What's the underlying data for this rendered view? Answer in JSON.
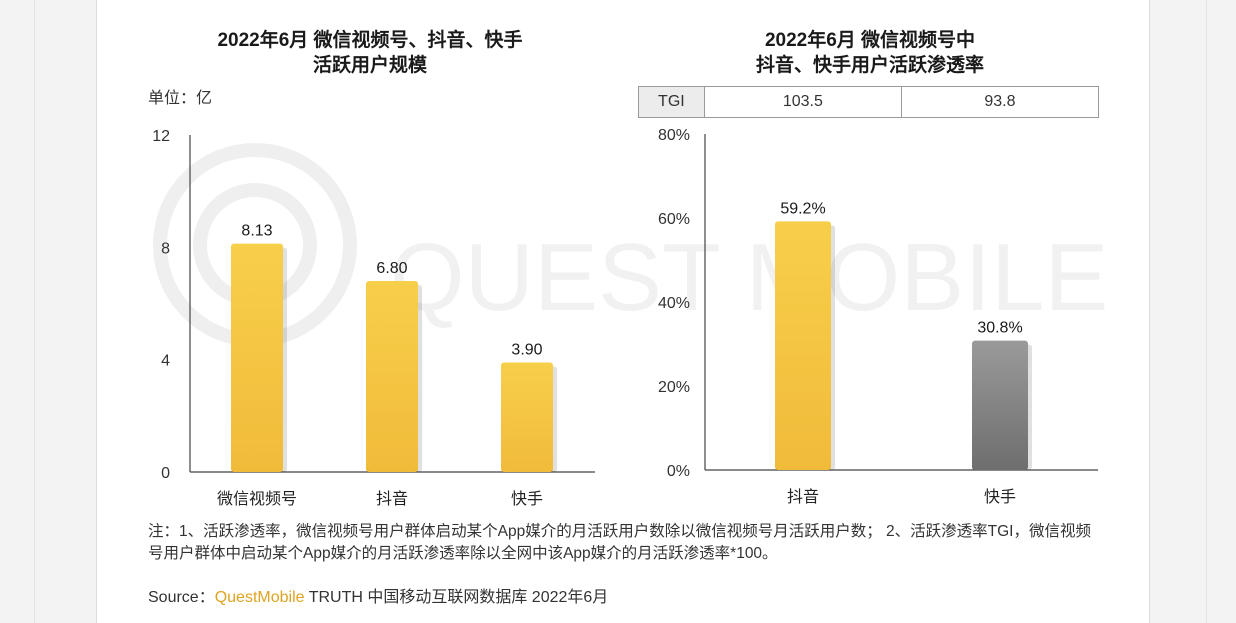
{
  "chart_data": [
    {
      "type": "bar",
      "title_line1": "2022年6月 微信视频号、抖音、快手",
      "title_line2": "活跃用户规模",
      "unit_label": "单位：亿",
      "categories": [
        "微信视频号",
        "抖音",
        "快手"
      ],
      "values": [
        8.13,
        6.8,
        3.9
      ],
      "value_labels": [
        "8.13",
        "6.80",
        "3.90"
      ],
      "yticks": [
        "0",
        "4",
        "8",
        "12"
      ],
      "ylim": [
        0,
        12
      ],
      "grid": false,
      "colors": [
        "#f5c842",
        "#f5c842",
        "#f5c842"
      ]
    },
    {
      "type": "bar",
      "title_line1": "2022年6月 微信视频号中",
      "title_line2": "抖音、快手用户活跃渗透率",
      "categories": [
        "抖音",
        "快手"
      ],
      "values": [
        59.2,
        30.8
      ],
      "value_labels": [
        "59.2%",
        "30.8%"
      ],
      "yticks": [
        "0%",
        "20%",
        "40%",
        "60%",
        "80%"
      ],
      "ylim": [
        0,
        80
      ],
      "grid": false,
      "colors": [
        "#f5c842",
        "#8a8a8a"
      ],
      "tgi": {
        "label": "TGI",
        "values": [
          "103.5",
          "93.8"
        ]
      }
    }
  ],
  "note": "注：1、活跃渗透率，微信视频号用户群体启动某个App媒介的月活跃用户数除以微信视频号月活跃用户数； 2、活跃渗透率TGI，微信视频号用户群体中启动某个App媒介的月活跃渗透率除以全网中该App媒介的月活跃渗透率*100。",
  "source": {
    "prefix": "Source：",
    "brand": "QuestMobile",
    "rest": " TRUTH 中国移动互联网数据库 2022年6月"
  },
  "watermark": "QUEST MOBILE"
}
